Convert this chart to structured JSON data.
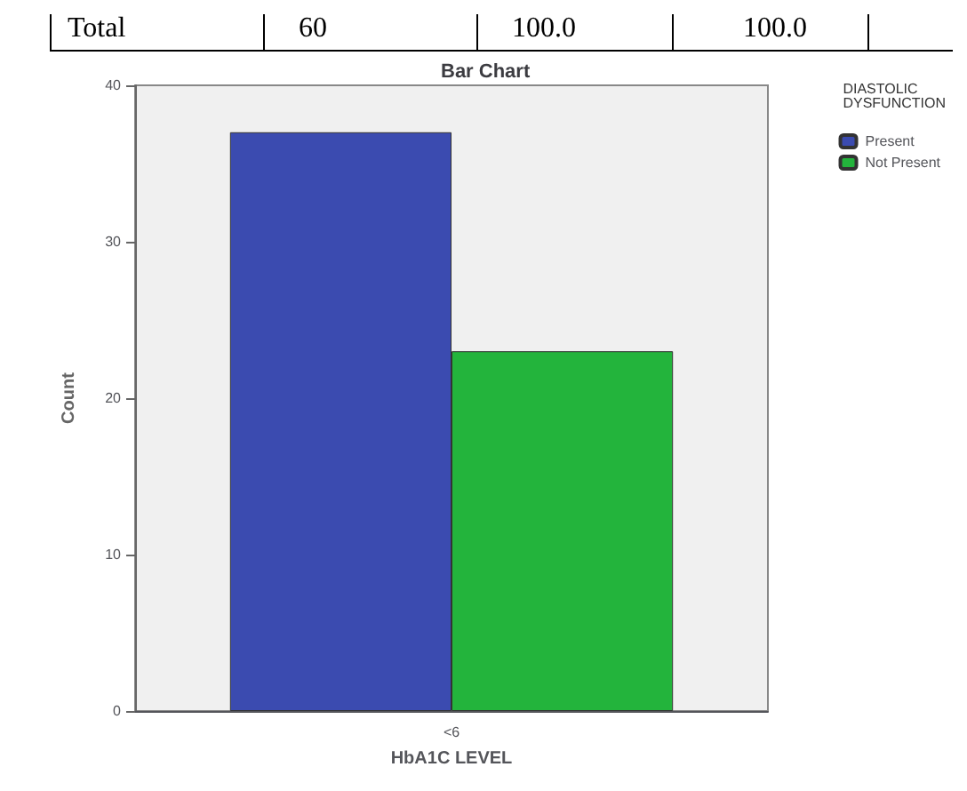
{
  "chart_data": {
    "type": "bar",
    "title": "Bar Chart",
    "xlabel": "HbA1C LEVEL",
    "ylabel": "Count",
    "legend_title": "DIASTOLIC DYSFUNCTION",
    "categories": [
      "<6"
    ],
    "series": [
      {
        "name": "Present",
        "color": "#3b4bb0",
        "values": [
          37
        ]
      },
      {
        "name": "Not Present",
        "color": "#23b43c",
        "values": [
          23
        ]
      }
    ],
    "ylim": [
      0,
      40
    ],
    "yticks": [
      0,
      10,
      20,
      30,
      40
    ],
    "grid": false,
    "legend": "top right",
    "annotations": [
      "Total",
      "60",
      "100.0",
      "100.0"
    ]
  }
}
